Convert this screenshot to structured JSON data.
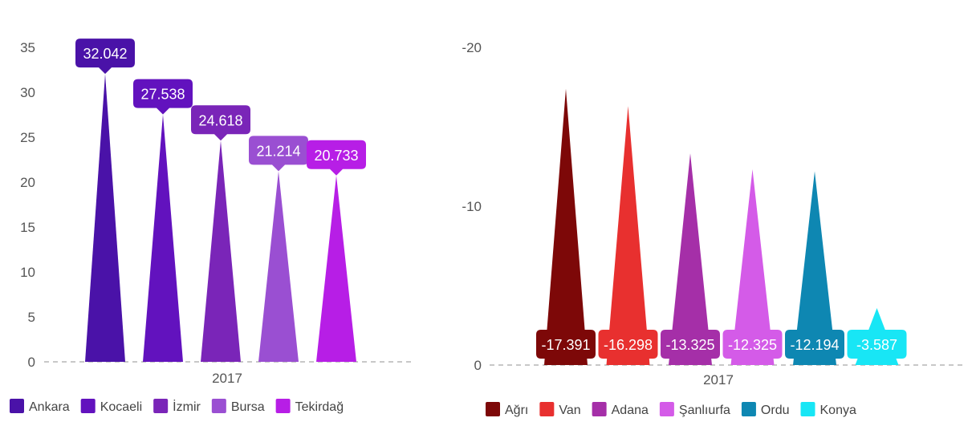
{
  "chart_data": [
    {
      "type": "bar",
      "categories": [
        "2017"
      ],
      "ylim": [
        0,
        35
      ],
      "yticks": [
        0,
        5,
        10,
        15,
        20,
        25,
        30,
        35
      ],
      "grid": false,
      "legend_position": "bottom",
      "series": [
        {
          "name": "Ankara",
          "values": [
            32.042
          ],
          "label": "32.042",
          "color": "#4a12a8"
        },
        {
          "name": "Kocaeli",
          "values": [
            27.538
          ],
          "label": "27.538",
          "color": "#6212be"
        },
        {
          "name": "İzmir",
          "values": [
            24.618
          ],
          "label": "24.618",
          "color": "#7a25b8"
        },
        {
          "name": "Bursa",
          "values": [
            21.214
          ],
          "label": "21.214",
          "color": "#9a4fd2"
        },
        {
          "name": "Tekirdağ",
          "values": [
            20.733
          ],
          "label": "20.733",
          "color": "#b71ee6"
        }
      ]
    },
    {
      "type": "bar",
      "categories": [
        "2017"
      ],
      "ylim": [
        -20,
        0
      ],
      "yticks": [
        0,
        -10,
        -20
      ],
      "grid": false,
      "legend_position": "bottom",
      "series": [
        {
          "name": "Ağrı",
          "values": [
            -17.391
          ],
          "label": "-17.391",
          "color": "#7d0808"
        },
        {
          "name": "Van",
          "values": [
            -16.298
          ],
          "label": "-16.298",
          "color": "#e8302f"
        },
        {
          "name": "Adana",
          "values": [
            -13.325
          ],
          "label": "-13.325",
          "color": "#a52fa8"
        },
        {
          "name": "Şanlıurfa",
          "values": [
            -12.325
          ],
          "label": "-12.325",
          "color": "#d45be8"
        },
        {
          "name": "Ordu",
          "values": [
            -12.194
          ],
          "label": "-12.194",
          "color": "#0e87b2"
        },
        {
          "name": "Konya",
          "values": [
            -3.587
          ],
          "label": "-3.587",
          "color": "#18e6f5"
        }
      ]
    }
  ]
}
